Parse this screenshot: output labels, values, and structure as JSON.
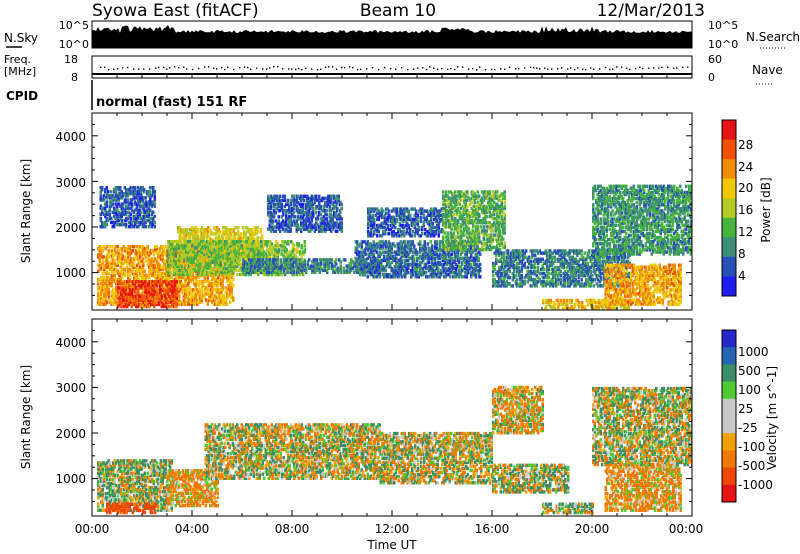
{
  "header": {
    "station": "Syowa East (fitACF)",
    "beam": "Beam 10",
    "date": "12/Mar/2013"
  },
  "noise_panel": {
    "left_label": "N.Sky",
    "right_label": "N.Search",
    "y_ticks": [
      "10^5",
      "10^0"
    ],
    "right_ticks": [
      "10^5",
      "10^0"
    ]
  },
  "freq_panel": {
    "left_label_line1": "Freq.",
    "left_label_line2": "[MHz]",
    "right_label": "Nave",
    "left_ticks": [
      "18",
      "8"
    ],
    "right_ticks": [
      "60",
      "0"
    ]
  },
  "cpid": {
    "label": "CPID",
    "text": "normal (fast) 151 RF"
  },
  "power_panel": {
    "ylabel": "Slant Range [km]",
    "y_ticks": [
      "4000",
      "3000",
      "2000",
      "1000"
    ],
    "colorbar_title": "Power [dB]",
    "colorbar_ticks": [
      "28",
      "24",
      "20",
      "16",
      "12",
      "8",
      "4"
    ],
    "colors": [
      "#1e1ef0",
      "#2850b4",
      "#3c8c78",
      "#46b43c",
      "#b4c828",
      "#f0c800",
      "#f08c00",
      "#f05000",
      "#e61414"
    ]
  },
  "velocity_panel": {
    "ylabel": "Slant Range [km]",
    "y_ticks": [
      "4000",
      "3000",
      "2000",
      "1000"
    ],
    "colorbar_title": "Velocity [m s^-1]",
    "colorbar_ticks": [
      "1000",
      "500",
      "100",
      "25",
      "-25",
      "-100",
      "-500",
      "-1000"
    ],
    "colors": [
      "#2828c8",
      "#2864b4",
      "#3c8c64",
      "#50c832",
      "#c8c8c8",
      "#c8c8c8",
      "#f0a000",
      "#f07800",
      "#f04600",
      "#e61414"
    ]
  },
  "x_axis": {
    "label": "Time UT",
    "ticks": [
      "00:00",
      "04:00",
      "08:00",
      "12:00",
      "16:00",
      "20:00",
      "00:00"
    ]
  },
  "chart_data": [
    {
      "type": "heatmap",
      "title": "Power [dB]",
      "x_range_hours": [
        0,
        24
      ],
      "y_range_km": [
        180,
        4500
      ],
      "color_range": [
        0,
        32
      ],
      "blobs": [
        {
          "t0": 0.2,
          "t1": 5.6,
          "r0": 300,
          "r1": 1600,
          "value": 22
        },
        {
          "t0": 1.0,
          "t1": 3.4,
          "r0": 250,
          "r1": 800,
          "value": 28
        },
        {
          "t0": 3.4,
          "t1": 6.8,
          "r0": 1300,
          "r1": 2000,
          "value": 18
        },
        {
          "t0": 3.0,
          "t1": 8.5,
          "r0": 950,
          "r1": 1700,
          "value": 14
        },
        {
          "t0": 6.0,
          "t1": 11.5,
          "r0": 1000,
          "r1": 1300,
          "value": 8
        },
        {
          "t0": 7.0,
          "t1": 10.0,
          "r0": 1900,
          "r1": 2700,
          "value": 6
        },
        {
          "t0": 10.5,
          "t1": 15.5,
          "r0": 900,
          "r1": 1700,
          "value": 7
        },
        {
          "t0": 11.0,
          "t1": 14.0,
          "r0": 1800,
          "r1": 2400,
          "value": 6
        },
        {
          "t0": 14.0,
          "t1": 16.5,
          "r0": 1500,
          "r1": 2800,
          "value": 12
        },
        {
          "t0": 16.0,
          "t1": 21.5,
          "r0": 700,
          "r1": 1500,
          "value": 8
        },
        {
          "t0": 18.0,
          "t1": 21.5,
          "r0": 200,
          "r1": 400,
          "value": 20
        },
        {
          "t0": 20.5,
          "t1": 23.5,
          "r0": 300,
          "r1": 1200,
          "value": 22
        },
        {
          "t0": 20.0,
          "t1": 24.0,
          "r0": 1400,
          "r1": 2900,
          "value": 10
        },
        {
          "t0": 0.3,
          "t1": 2.5,
          "r0": 2000,
          "r1": 2900,
          "value": 6
        }
      ]
    },
    {
      "type": "heatmap",
      "title": "Velocity [m s^-1]",
      "x_range_hours": [
        0,
        24
      ],
      "y_range_km": [
        180,
        4500
      ],
      "color_range": [
        -1000,
        1000
      ],
      "blobs": [
        {
          "t0": 0.2,
          "t1": 3.2,
          "r0": 300,
          "r1": 1400,
          "value": 80
        },
        {
          "t0": 0.5,
          "t1": 2.5,
          "r0": 250,
          "r1": 450,
          "value": -700
        },
        {
          "t0": 3.0,
          "t1": 5.0,
          "r0": 400,
          "r1": 1200,
          "value": -150
        },
        {
          "t0": 4.5,
          "t1": 11.5,
          "r0": 1000,
          "r1": 2200,
          "value": 0
        },
        {
          "t0": 11.5,
          "t1": 16.0,
          "r0": 900,
          "r1": 2000,
          "value": 0
        },
        {
          "t0": 16.0,
          "t1": 19.0,
          "r0": 700,
          "r1": 1300,
          "value": 60
        },
        {
          "t0": 18.0,
          "t1": 20.0,
          "r0": 250,
          "r1": 450,
          "value": 60
        },
        {
          "t0": 20.5,
          "t1": 23.5,
          "r0": 300,
          "r1": 1300,
          "value": -150
        },
        {
          "t0": 20.0,
          "t1": 24.0,
          "r0": 1300,
          "r1": 3000,
          "value": 20
        },
        {
          "t0": 16.0,
          "t1": 18.0,
          "r0": 2000,
          "r1": 3000,
          "value": -80
        }
      ]
    }
  ]
}
